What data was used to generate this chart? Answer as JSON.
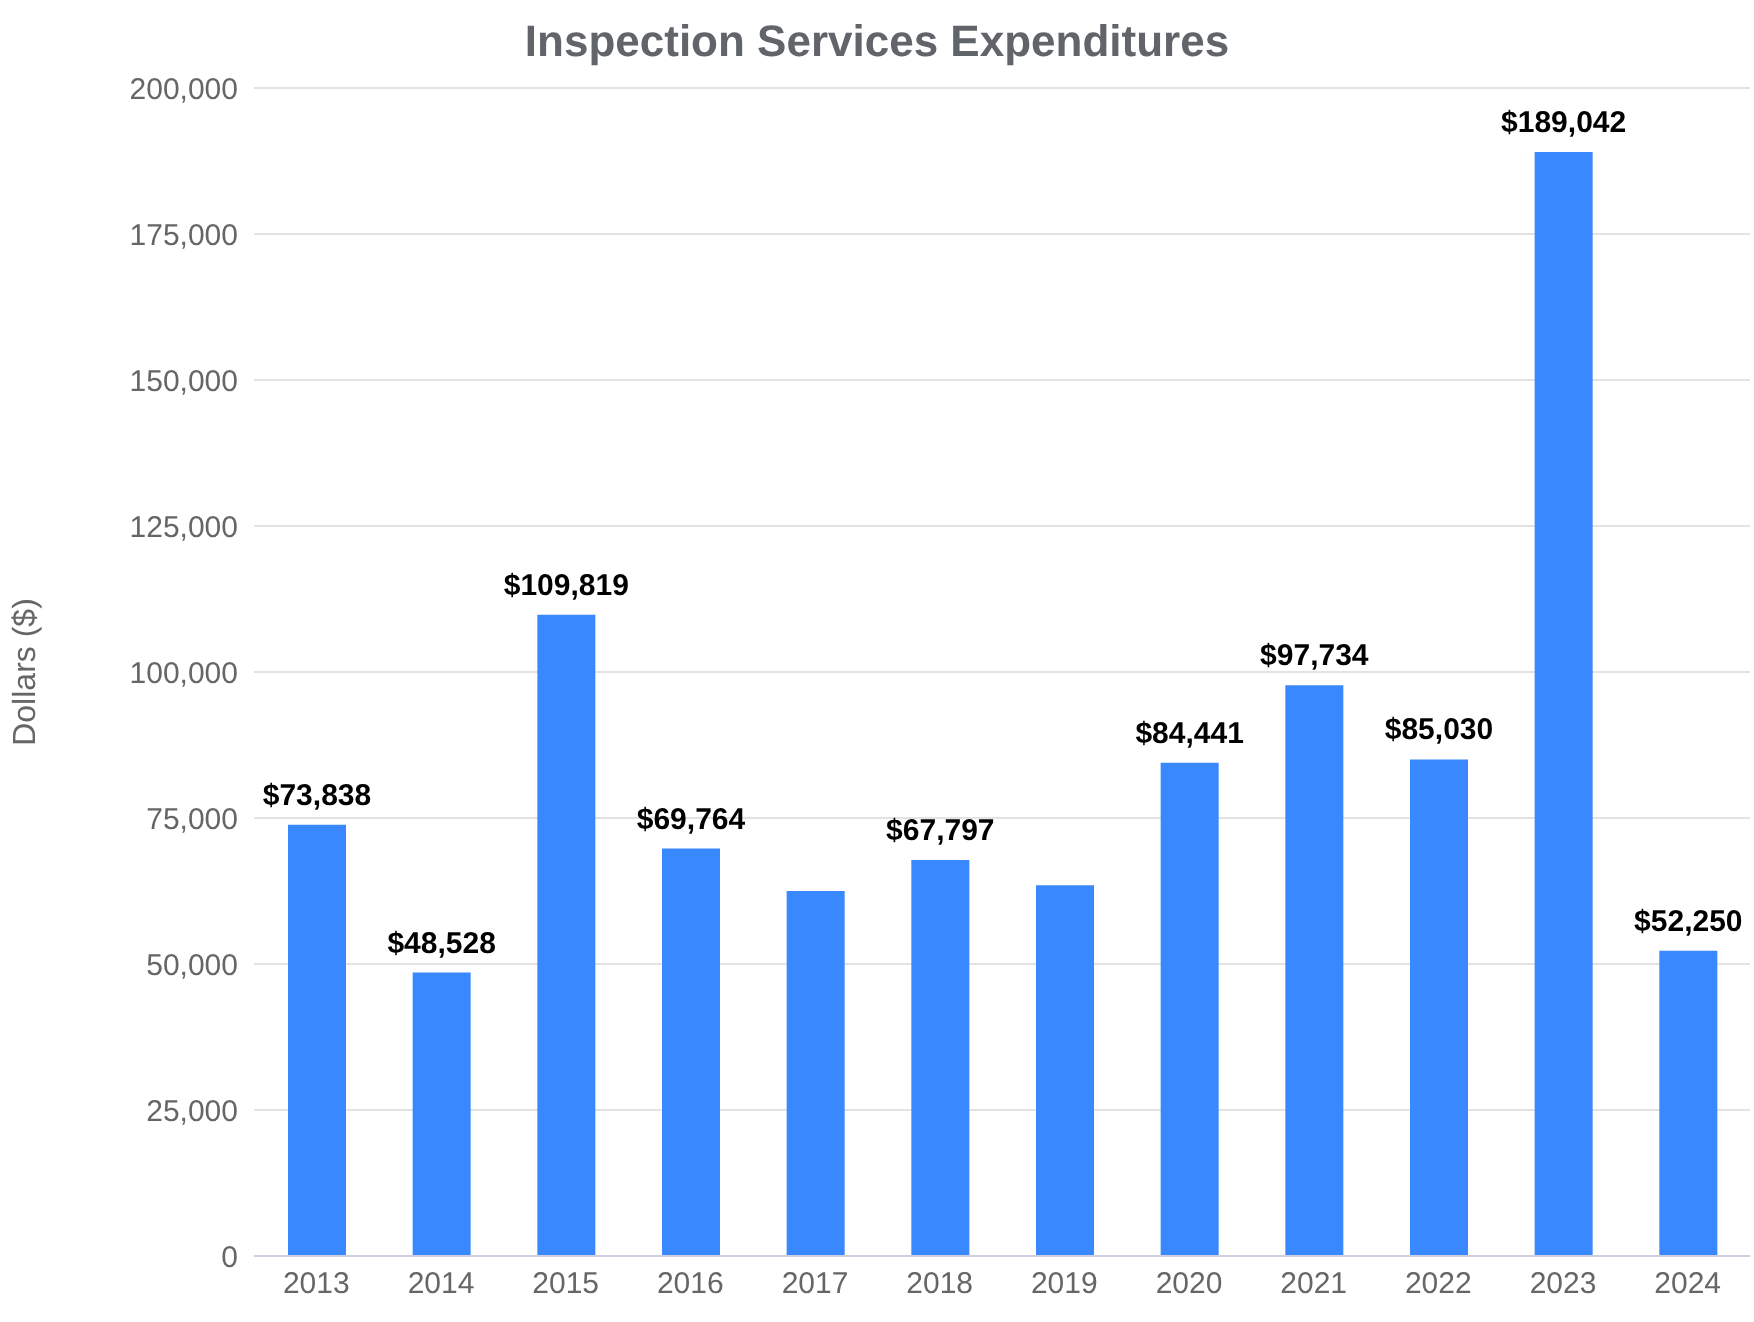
{
  "chart_data": {
    "type": "bar",
    "title": "Inspection Services Expenditures",
    "ylabel": "Dollars ($)",
    "categories": [
      "2013",
      "2014",
      "2015",
      "2016",
      "2017",
      "2018",
      "2019",
      "2020",
      "2021",
      "2022",
      "2023",
      "2024"
    ],
    "values": [
      73838,
      48528,
      109819,
      69764,
      62500,
      67797,
      63500,
      84441,
      97734,
      85030,
      189042,
      52250
    ],
    "value_labels": [
      "$73,838",
      "$48,528",
      "$109,819",
      "$69,764",
      null,
      "$67,797",
      null,
      "$84,441",
      "$97,734",
      "$85,030",
      "$189,042",
      "$52,250"
    ],
    "color": "#3a88fe",
    "ylim": [
      0,
      200000
    ],
    "yticks": [
      {
        "value": 0,
        "label": "0"
      },
      {
        "value": 25000,
        "label": "25,000"
      },
      {
        "value": 50000,
        "label": "50,000"
      },
      {
        "value": 75000,
        "label": "75,000"
      },
      {
        "value": 100000,
        "label": "100,000"
      },
      {
        "value": 125000,
        "label": "125,000"
      },
      {
        "value": 150000,
        "label": "150,000"
      },
      {
        "value": 175000,
        "label": "175,000"
      },
      {
        "value": 200000,
        "label": "200,000"
      }
    ],
    "grid": "y"
  }
}
